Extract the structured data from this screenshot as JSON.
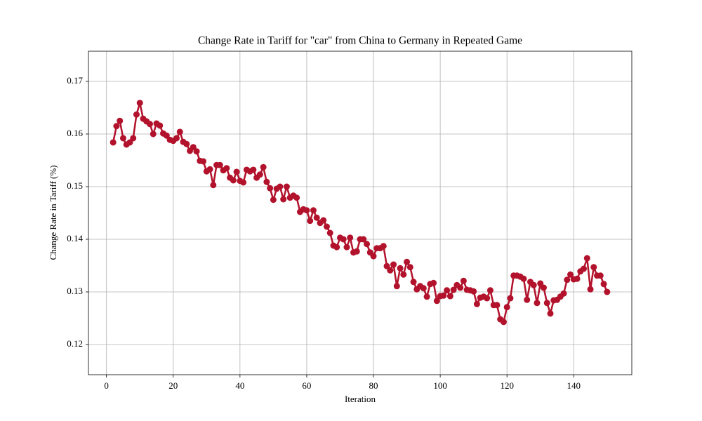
{
  "chart_data": {
    "type": "line",
    "title": "Change Rate in Tariff for \"car\" from China to Germany in Repeated Game",
    "x_label": "Iteration",
    "y_label": "Change Rate in Tariff (%)",
    "x": [
      2,
      3,
      4,
      5,
      6,
      7,
      8,
      9,
      10,
      11,
      12,
      13,
      14,
      15,
      16,
      17,
      18,
      19,
      20,
      21,
      22,
      23,
      24,
      25,
      26,
      27,
      28,
      29,
      30,
      31,
      32,
      33,
      34,
      35,
      36,
      37,
      38,
      39,
      40,
      41,
      42,
      43,
      44,
      45,
      46,
      47,
      48,
      49,
      50,
      51,
      52,
      53,
      54,
      55,
      56,
      57,
      58,
      59,
      60,
      61,
      62,
      63,
      64,
      65,
      66,
      67,
      68,
      69,
      70,
      71,
      72,
      73,
      74,
      75,
      76,
      77,
      78,
      79,
      80,
      81,
      82,
      83,
      84,
      85,
      86,
      87,
      88,
      89,
      90,
      91,
      92,
      93,
      94,
      95,
      96,
      97,
      98,
      99,
      100,
      101,
      102,
      103,
      104,
      105,
      106,
      107,
      108,
      109,
      110,
      111,
      112,
      113,
      114,
      115,
      116,
      117,
      118,
      119,
      120,
      121,
      122,
      123,
      124,
      125,
      126,
      127,
      128,
      129,
      130,
      131,
      132,
      133,
      134,
      135,
      136,
      137,
      138,
      139,
      140,
      141,
      142,
      143,
      144,
      145,
      146,
      147,
      148,
      149,
      150
    ],
    "series": [
      {
        "name": "Change Rate",
        "color": "#b2122b",
        "values": [
          0.1584,
          0.1615,
          0.1625,
          0.1592,
          0.158,
          0.1584,
          0.1592,
          0.1637,
          0.1659,
          0.1629,
          0.1624,
          0.1619,
          0.16,
          0.162,
          0.1616,
          0.1601,
          0.1597,
          0.1589,
          0.1587,
          0.1592,
          0.1604,
          0.1585,
          0.1581,
          0.1568,
          0.1575,
          0.1567,
          0.1549,
          0.1548,
          0.1529,
          0.1533,
          0.1503,
          0.1541,
          0.1541,
          0.1531,
          0.1535,
          0.1517,
          0.1512,
          0.1528,
          0.1511,
          0.1508,
          0.1532,
          0.1529,
          0.1532,
          0.1517,
          0.1523,
          0.1537,
          0.1509,
          0.1497,
          0.1475,
          0.1496,
          0.15,
          0.1476,
          0.15,
          0.1479,
          0.1483,
          0.1479,
          0.1452,
          0.1457,
          0.1455,
          0.1435,
          0.1455,
          0.1441,
          0.1431,
          0.1436,
          0.1424,
          0.1412,
          0.1388,
          0.1385,
          0.1403,
          0.14,
          0.1385,
          0.1403,
          0.1375,
          0.1377,
          0.14,
          0.14,
          0.1391,
          0.1375,
          0.1368,
          0.1383,
          0.1383,
          0.1387,
          0.1349,
          0.1341,
          0.1352,
          0.1311,
          0.1345,
          0.1333,
          0.1357,
          0.1347,
          0.1319,
          0.1305,
          0.1311,
          0.1307,
          0.1291,
          0.1315,
          0.1317,
          0.1283,
          0.1292,
          0.1293,
          0.1303,
          0.1292,
          0.1304,
          0.1313,
          0.1308,
          0.1321,
          0.1304,
          0.1303,
          0.1301,
          0.1277,
          0.1289,
          0.1291,
          0.1288,
          0.1303,
          0.1275,
          0.1275,
          0.1248,
          0.1243,
          0.1271,
          0.1288,
          0.1331,
          0.1331,
          0.1329,
          0.1325,
          0.1285,
          0.1319,
          0.1313,
          0.1279,
          0.1316,
          0.1308,
          0.1279,
          0.1259,
          0.1284,
          0.1285,
          0.1291,
          0.1297,
          0.1323,
          0.1333,
          0.1324,
          0.1325,
          0.1339,
          0.1344,
          0.1364,
          0.1305,
          0.1347,
          0.1331,
          0.1331,
          0.1315,
          0.13
        ]
      }
    ],
    "xlim": [
      -5.4,
      157.4
    ],
    "xticks": [
      0,
      20,
      40,
      60,
      80,
      100,
      120,
      140
    ],
    "ylim": [
      0.11427,
      0.17573
    ],
    "yticks": [
      0.12,
      0.13,
      0.14,
      0.15,
      0.16,
      0.17
    ],
    "grid": true
  }
}
